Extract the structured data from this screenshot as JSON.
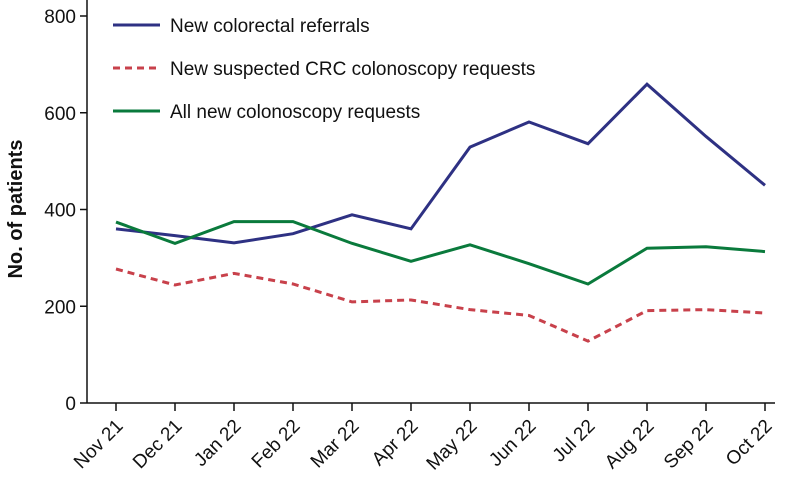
{
  "chart_data": {
    "type": "line",
    "title": "",
    "xlabel": "",
    "ylabel": "No. of patients",
    "ylim": [
      0,
      800
    ],
    "yticks": [
      0,
      200,
      400,
      600,
      800
    ],
    "grid": false,
    "legend_position": "top-left",
    "categories": [
      "Nov 21",
      "Dec 21",
      "Jan 22",
      "Feb 22",
      "Mar 22",
      "Apr 22",
      "May 22",
      "Jun 22",
      "Jul 22",
      "Aug 22",
      "Sep 22",
      "Oct 22"
    ],
    "series": [
      {
        "name": "New colorectal referrals",
        "color": "#2e3183",
        "dash": "solid",
        "values": [
          360,
          346,
          331,
          350,
          389,
          360,
          529,
          581,
          536,
          659,
          551,
          450
        ]
      },
      {
        "name": "New suspected CRC colonoscopy requests",
        "color": "#c8414b",
        "dash": "dashed",
        "values": [
          277,
          244,
          268,
          246,
          209,
          213,
          193,
          181,
          128,
          191,
          193,
          186
        ]
      },
      {
        "name": "All new colonoscopy requests",
        "color": "#0a7a3c",
        "dash": "solid",
        "values": [
          374,
          330,
          375,
          375,
          330,
          293,
          327,
          288,
          246,
          320,
          323,
          313
        ]
      }
    ]
  }
}
